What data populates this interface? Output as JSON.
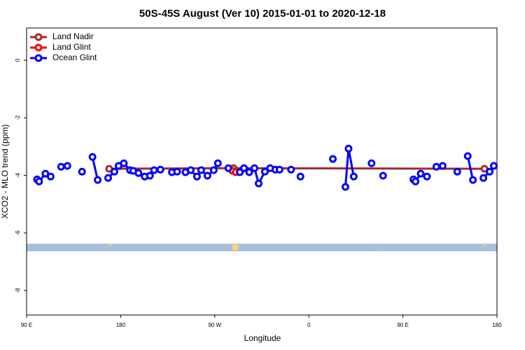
{
  "chart_data": {
    "type": "line",
    "title": "50S-45S August (Ver 10)   2015-01-01 to 2020-12-18",
    "xlabel": "Longitude",
    "ylabel": "XCO2 - MLO trend (ppm)",
    "xlim": [
      90,
      540
    ],
    "ylim": [
      -8.85,
      1.12
    ],
    "xticks": [
      {
        "value": 90,
        "label": "90 E"
      },
      {
        "value": 180,
        "label": "180"
      },
      {
        "value": 270,
        "label": "90 W"
      },
      {
        "value": 360,
        "label": "0"
      },
      {
        "value": 450,
        "label": "90 E"
      },
      {
        "value": 540,
        "label": "180"
      }
    ],
    "yticks": [
      -8,
      -6,
      -4,
      -2,
      0
    ],
    "legend": "upper left",
    "series": [
      {
        "name": "Land Nadir",
        "color": "#a52a2a",
        "x": [
          169,
          288,
          528
        ],
        "values": [
          -3.77,
          -3.75,
          -3.77
        ]
      },
      {
        "name": "Land Glint",
        "color": "#ff0000",
        "x": [
          287,
          290
        ],
        "values": [
          -3.84,
          -3.89
        ]
      },
      {
        "name": "Ocean Glint",
        "color": "#0000ff",
        "x": [
          100,
          102,
          108,
          113,
          null,
          123,
          129,
          null,
          143,
          null,
          153,
          158,
          null,
          168,
          174,
          178,
          183,
          189,
          192,
          197,
          203,
          208,
          212,
          218,
          null,
          229,
          234,
          null,
          242,
          247,
          253,
          257,
          263,
          269,
          273,
          null,
          283,
          null,
          294,
          298,
          303,
          308,
          312,
          318,
          323,
          328,
          332,
          null,
          343,
          null,
          352,
          null,
          383,
          null,
          395,
          398,
          403,
          null,
          420,
          null,
          431,
          null,
          460,
          462,
          467,
          473,
          null,
          482,
          488,
          null,
          502,
          null,
          512,
          517,
          null,
          527,
          533,
          537
        ],
        "values": [
          -4.14,
          -4.21,
          -3.94,
          -4.04,
          null,
          -3.7,
          -3.67,
          null,
          -3.87,
          null,
          -3.36,
          -4.16,
          null,
          -4.09,
          -3.87,
          -3.67,
          -3.58,
          -3.82,
          -3.84,
          -3.92,
          -4.04,
          -4.01,
          -3.82,
          -3.8,
          null,
          -3.89,
          -3.87,
          null,
          -3.89,
          -3.82,
          -4.04,
          -3.82,
          -4.01,
          -3.82,
          -3.58,
          null,
          -3.75,
          null,
          -3.89,
          -3.75,
          -3.89,
          -3.75,
          -4.28,
          -3.87,
          -3.75,
          -3.8,
          -3.8,
          null,
          -3.8,
          null,
          -4.04,
          null,
          -3.43,
          null,
          -4.4,
          -3.07,
          -4.04,
          null,
          -3.58,
          null,
          -4.01,
          null,
          -4.14,
          -4.21,
          -3.94,
          -4.04,
          null,
          -3.7,
          -3.67,
          null,
          -3.87,
          null,
          -3.33,
          -4.16,
          null,
          -4.09,
          -3.87,
          -3.67
        ]
      }
    ]
  }
}
